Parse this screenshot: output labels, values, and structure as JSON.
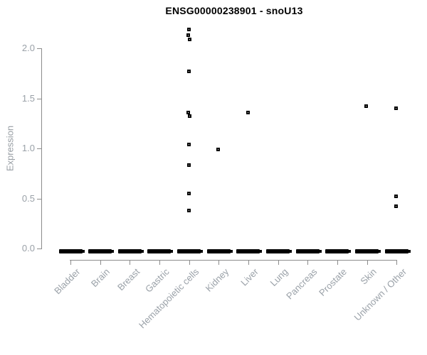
{
  "title": "ENSG00000238901 - snoU13",
  "colors": {
    "background": "#ffffff",
    "title_text": "#000000",
    "axis_text": "#9aa1a8",
    "axis_line": "#8c8c8c",
    "point": "#000000"
  },
  "chart_data": {
    "type": "scatter",
    "title": "ENSG00000238901 - snoU13",
    "xlabel": "",
    "ylabel": "Expression",
    "ylim": [
      0.0,
      2.2
    ],
    "yticks": [
      "0.0",
      "0.5",
      "1.0",
      "1.5",
      "2.0"
    ],
    "grid": false,
    "legend": null,
    "categories": [
      "Bladder",
      "Brain",
      "Breast",
      "Gastric",
      "Hematopoietic cells",
      "Kidney",
      "Liver",
      "Lung",
      "Pancreas",
      "Prostate",
      "Skin",
      "Unknown / Other"
    ],
    "zero_clusters": {
      "note": "every category shows a dense cluster of overlapping points at expression 0.0",
      "categories": [
        "Bladder",
        "Brain",
        "Breast",
        "Gastric",
        "Hematopoietic cells",
        "Kidney",
        "Liver",
        "Lung",
        "Pancreas",
        "Prostate",
        "Skin",
        "Unknown / Other"
      ],
      "value": 0.0
    },
    "points": [
      {
        "category": "Hematopoietic cells",
        "value": 2.19,
        "dx": 0
      },
      {
        "category": "Hematopoietic cells",
        "value": 2.13,
        "dx": -1
      },
      {
        "category": "Hematopoietic cells",
        "value": 2.09,
        "dx": 1
      },
      {
        "category": "Hematopoietic cells",
        "value": 1.77,
        "dx": 0
      },
      {
        "category": "Hematopoietic cells",
        "value": 1.36,
        "dx": -1
      },
      {
        "category": "Hematopoietic cells",
        "value": 1.32,
        "dx": 1
      },
      {
        "category": "Hematopoietic cells",
        "value": 1.04,
        "dx": 0
      },
      {
        "category": "Hematopoietic cells",
        "value": 0.83,
        "dx": 0
      },
      {
        "category": "Hematopoietic cells",
        "value": 0.55,
        "dx": 0
      },
      {
        "category": "Hematopoietic cells",
        "value": 0.38,
        "dx": 0
      },
      {
        "category": "Kidney",
        "value": 0.99,
        "dx": -1
      },
      {
        "category": "Liver",
        "value": 1.36,
        "dx": 0
      },
      {
        "category": "Skin",
        "value": 1.42,
        "dx": -1
      },
      {
        "category": "Unknown / Other",
        "value": 1.4,
        "dx": -1
      },
      {
        "category": "Unknown / Other",
        "value": 0.52,
        "dx": -1
      },
      {
        "category": "Unknown / Other",
        "value": 0.42,
        "dx": -1
      }
    ]
  }
}
